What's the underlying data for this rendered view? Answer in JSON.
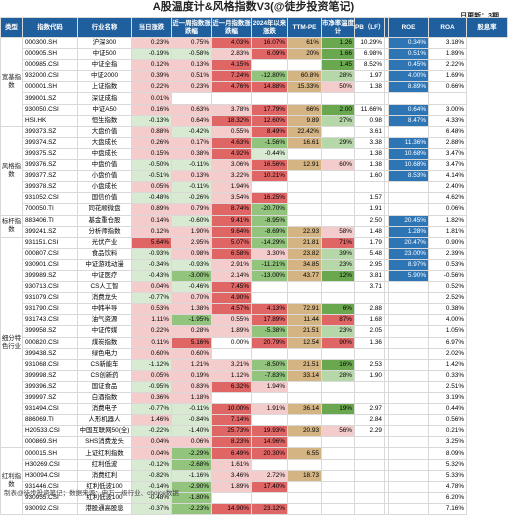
{
  "title": "A股温度计&风格指数V3(@徒步投资笔记)",
  "update": {
    "label": "日更新：",
    "issue": "3期"
  },
  "headers": [
    "类型",
    "指数代码",
    "行业名称",
    "当日涨跌",
    "近一周指数涨跌幅",
    "近一月指数涨跌幅",
    "2024年以来涨跌",
    "TTM-PE",
    "市净率温度计",
    "PB（LF）",
    "",
    "ROE",
    "ROA",
    "股息率"
  ],
  "groups": [
    {
      "label": "宽基指数",
      "rows": [
        [
          "000300.SH",
          "沪深300",
          "0.23%",
          "0.75%",
          "4.03%",
          "16.07%",
          "61%",
          "1.26",
          "10.29%",
          "0.34%",
          "3.18%"
        ],
        [
          "000905.SH",
          "中证500",
          "-0.19%",
          "-0.58%",
          "2.83%",
          "6.09%",
          "20%",
          "1.66",
          "6.98%",
          "0.51%",
          "1.89%"
        ],
        [
          "000985.CSI",
          "中证全指",
          "0.12%",
          "0.13%",
          "4.15%",
          "",
          "",
          "1.45",
          "8.52%",
          "0.45%",
          "2.22%"
        ],
        [
          "932000.CSI",
          "中证2000",
          "0.39%",
          "0.51%",
          "7.24%",
          "-12.80%",
          "60.8%",
          "28%",
          "1.97",
          "4.00%",
          "1.69%"
        ],
        [
          "000001.SH",
          "上证指数",
          "0.22%",
          "0.23%",
          "4.76%",
          "14.88%",
          "15.33%",
          "50%",
          "1.38",
          "8.89%",
          "0.66%"
        ],
        [
          "399001.SZ",
          "深证成指",
          "0.01%",
          "",
          "",
          "",
          "",
          "",
          "",
          "",
          ""
        ],
        [
          "930050.CSI",
          "中证A50",
          "0.16%",
          "0.63%",
          "3.78%",
          "17.79%",
          "66%",
          "2.00",
          "11.66%",
          "0.64%",
          "3.00%"
        ],
        [
          "HSI.HK",
          "恒生指数",
          "-0.13%",
          "0.64%",
          "18.32%",
          "12.60%",
          "9.89",
          "27%",
          "0.98",
          "8.47%",
          "4.33%"
        ]
      ]
    },
    {
      "label": "风格指数",
      "rows": [
        [
          "399373.SZ",
          "大盘价值",
          "0.88%",
          "-0.42%",
          "0.55%",
          "8.49%",
          "22.42%",
          "",
          "3.61",
          "",
          "6.48%"
        ],
        [
          "399374.SZ",
          "大盘成长",
          "0.26%",
          "0.17%",
          "4.63%",
          "-1.56%",
          "16.61",
          "29%",
          "3.38",
          "11.36%",
          "2.88%"
        ],
        [
          "399375.SZ",
          "中盘成长",
          "0.15%",
          "0.38%",
          "4.92%",
          "-0.44%",
          "",
          "",
          "1.38",
          "10.68%",
          "3.47%"
        ],
        [
          "399376.SZ",
          "中盘价值",
          "-0.50%",
          "-0.11%",
          "3.06%",
          "16.56%",
          "12.91",
          "60%",
          "1.38",
          "10.68%",
          "3.47%"
        ],
        [
          "399377.SZ",
          "小盘价值",
          "-0.51%",
          "0.13%",
          "3.22%",
          "10.21%",
          "",
          "",
          "1.60",
          "8.53%",
          "4.14%"
        ],
        [
          "399378.SZ",
          "小盘成长",
          "0.05%",
          "-0.11%",
          "1.94%",
          "",
          "",
          "",
          "",
          "",
          "2.40%"
        ],
        [
          "931052.CSI",
          "国信价值",
          "-0.48%",
          "-0.26%",
          "3.54%",
          "16.25%",
          "",
          "",
          "1.57",
          "",
          "4.62%"
        ],
        [
          "700050.TI",
          "同花顺微盘",
          "0.89%",
          "0.79%",
          "8.74%",
          "-20.70%",
          "",
          "",
          "1.91",
          "",
          "0.06%"
        ]
      ]
    },
    {
      "label": "标杆指数",
      "rows": [
        [
          "883406.TI",
          "基金重仓股",
          "0.14%",
          "-0.60%",
          "9.41%",
          "-8.95%",
          "",
          "",
          "2.50",
          "20.45%",
          "1.82%"
        ],
        [
          "399241.SZ",
          "分析师指数",
          "0.12%",
          "1.90%",
          "9.64%",
          "-8.69%",
          "22.93",
          "58%",
          "1.48",
          "1.28%",
          "1.81%"
        ]
      ]
    },
    {
      "label": "细分特色行业",
      "rows": [
        [
          "931151.CSI",
          "光伏产业",
          "5.64%",
          "2.95%",
          "5.07%",
          "-14.29%",
          "21.81",
          "71%",
          "1.79",
          "20.47%",
          "0.90%"
        ],
        [
          "000807.CSI",
          "食品饮料",
          "-0.93%",
          "0.98%",
          "6.58%",
          "3.30%",
          "23.82",
          "39%",
          "5.48",
          "23.00%",
          "2.39%"
        ],
        [
          "930901.CSI",
          "中证游戏动漫",
          "-0.34%",
          "-0.93%",
          "2.91%",
          "-11.21%",
          "34.85",
          "23%",
          "2.95",
          "8.97%",
          "0.53%"
        ],
        [
          "399989.SZ",
          "中证医疗",
          "-0.43%",
          "-3.00%",
          "2.14%",
          "-13.00%",
          "43.77",
          "12%",
          "3.81",
          "5.90%",
          "-0.56%"
        ],
        [
          "930713.CSI",
          "CS人工智",
          "0.04%",
          "-0.46%",
          "7.45%",
          "",
          "",
          "",
          "3.71",
          "",
          "0.52%"
        ],
        [
          "931079.CSI",
          "消费龙头",
          "-0.77%",
          "0.70%",
          "4.90%",
          "",
          "",
          "",
          "",
          "",
          "2.52%"
        ],
        [
          "931790.CSI",
          "中韩半导",
          "0.53%",
          "1.38%",
          "4.57%",
          "4.13%",
          "72.91",
          "6%",
          "2.88",
          "",
          "0.38%"
        ],
        [
          "931743.CSI",
          "油气资源",
          "1.11%",
          "-1.95%",
          "0.55%",
          "17.89%",
          "11.44",
          "87%",
          "1.68",
          "",
          "4.00%"
        ],
        [
          "399958.SZ",
          "中证传媒",
          "0.22%",
          "0.28%",
          "1.89%",
          "-5.38%",
          "21.51",
          "23%",
          "2.05",
          "",
          "1.05%"
        ],
        [
          "000820.CSI",
          "煤炭指数",
          "0.11%",
          "5.16%",
          "0.00%",
          "20.79%",
          "12.54",
          "90%",
          "1.36",
          "",
          "6.97%"
        ],
        [
          "399438.SZ",
          "绿色电力",
          "0.60%",
          "0.60%",
          "",
          "",
          "",
          "",
          "",
          "",
          "2.02%"
        ],
        [
          "931068.CSI",
          "CS新能车",
          "-1.12%",
          "1.21%",
          "3.21%",
          "-8.50%",
          "21.51",
          "16%",
          "2.53",
          "",
          "1.42%"
        ],
        [
          "399998.SZ",
          "CS创新药",
          "0.05%",
          "0.19%",
          "1.12%",
          "-7.83%",
          "33.14",
          "28%",
          "1.90",
          "",
          "0.33%"
        ],
        [
          "399396.SZ",
          "国证食品",
          "-0.95%",
          "0.83%",
          "6.32%",
          "1.94%",
          "",
          "",
          "",
          "",
          "2.51%"
        ],
        [
          "399997.SZ",
          "白酒指数",
          "0.36%",
          "1.18%",
          "",
          "",
          "",
          "",
          "",
          "",
          "3.19%"
        ],
        [
          "931494.CSI",
          "消费电子",
          "-0.77%",
          "-0.11%",
          "10.00%",
          "1.91%",
          "36.14",
          "19%",
          "2.97",
          "",
          "0.44%"
        ],
        [
          "886069.TI",
          "人形机器人",
          "1.46%",
          "-0.84%",
          "7.14%",
          "",
          "",
          "",
          "2.84",
          "",
          "0.56%"
        ],
        [
          "H20533.CSI",
          "中国互联网50(全)",
          "-0.22%",
          "-1.40%",
          "25.73%",
          "19.93%",
          "20.93",
          "56%",
          "2.29",
          "",
          "0.21%"
        ],
        [
          "000869.SH",
          "SHS消费龙头",
          "0.04%",
          "0.06%",
          "8.23%",
          "14.96%",
          "",
          "",
          "",
          "",
          "3.25%"
        ]
      ]
    },
    {
      "label": "红利指数",
      "rows": [
        [
          "000015.SH",
          "上证红利指数",
          "0.04%",
          "-2.29%",
          "6.49%",
          "20.30%",
          "6.55",
          "",
          "",
          "",
          "8.09%"
        ],
        [
          "H30269.CSI",
          "红利低波",
          "-0.12%",
          "-2.68%",
          "1.61%",
          "",
          "",
          "",
          "",
          "",
          "5.32%"
        ],
        [
          "H30094.CSI",
          "消费红利",
          "-0.82%",
          "-1.16%",
          "3.46%",
          "2.72%",
          "18.73",
          "",
          "",
          "",
          "5.33%"
        ],
        [
          "931446.CSI",
          "红利低波100",
          "-0.14%",
          "-2.90%",
          "1.89%",
          "17.40%",
          "",
          "",
          "",
          "",
          "4.78%"
        ],
        [
          "930955.CSI",
          "红利低波100",
          "-0.48%",
          "-1.80%",
          "",
          "",
          "",
          "",
          "",
          "",
          "6.20%"
        ],
        [
          "930092.CSI",
          "港股通高股息",
          "-0.37%",
          "-2.23%",
          "14.90%",
          "23.12%",
          "",
          "",
          "",
          "",
          "7.16%"
        ]
      ]
    }
  ],
  "footer": "制表@徒步投资笔记；数据来源：申万一级行业、choice数据",
  "colors": {
    "header_bg": "#1f5f9e",
    "pos_bg": "#f4cccc",
    "neg_bg": "#d9ead3",
    "strong_pos": "#e06666",
    "strong_neg": "#93c47d",
    "pe_bg": "#d4b483",
    "blue_hl": "#2e75b6"
  }
}
